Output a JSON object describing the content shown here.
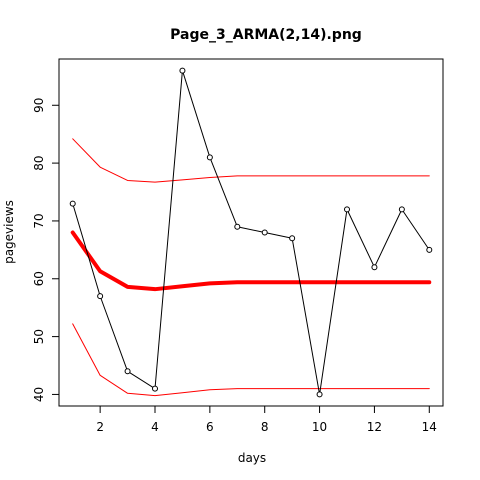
{
  "chart_data": {
    "type": "line",
    "title": "Page_3_ARMA(2,14).png",
    "xlabel": "days",
    "ylabel": "pageviews",
    "xlim": [
      0.5,
      14.5
    ],
    "ylim": [
      38,
      98
    ],
    "xticks": [
      2,
      4,
      6,
      8,
      10,
      12,
      14
    ],
    "yticks": [
      40,
      50,
      60,
      70,
      80,
      90
    ],
    "grid": false,
    "legend": "none",
    "x": [
      1,
      2,
      3,
      4,
      5,
      6,
      7,
      8,
      9,
      10,
      11,
      12,
      13,
      14
    ],
    "series": [
      {
        "role": "observed",
        "color": "#000000",
        "style": "line-with-open-circles",
        "values": [
          73,
          57,
          44,
          41,
          96,
          81,
          69,
          68,
          67,
          40,
          72,
          62,
          72,
          65
        ]
      },
      {
        "role": "fitted",
        "color": "#ff0000",
        "style": "thick-line",
        "values": [
          68.0,
          61.3,
          58.6,
          58.2,
          58.7,
          59.2,
          59.4,
          59.4,
          59.4,
          59.4,
          59.4,
          59.4,
          59.4,
          59.4
        ]
      },
      {
        "role": "upper-bound",
        "color": "#ff0000",
        "style": "thin-line",
        "values": [
          84.2,
          79.3,
          77.0,
          76.7,
          77.1,
          77.5,
          77.8,
          77.8,
          77.8,
          77.8,
          77.8,
          77.8,
          77.8,
          77.8
        ]
      },
      {
        "role": "lower-bound",
        "color": "#ff0000",
        "style": "thin-line",
        "values": [
          52.2,
          43.3,
          40.2,
          39.8,
          40.3,
          40.8,
          41.0,
          41.0,
          41.0,
          41.0,
          41.0,
          41.0,
          41.0,
          41.0
        ]
      }
    ]
  }
}
